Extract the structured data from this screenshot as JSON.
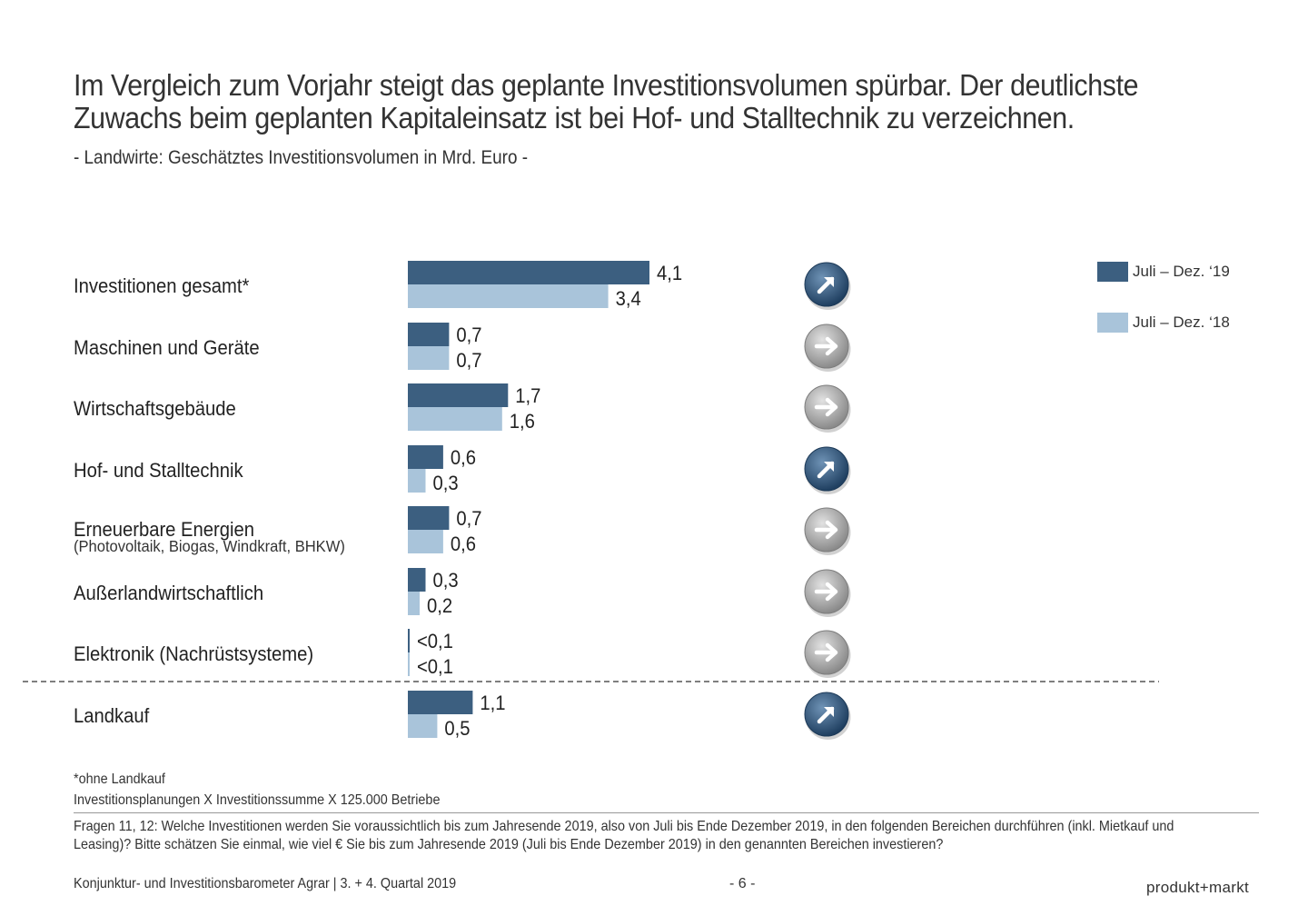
{
  "headline": {
    "line1": "Im Vergleich zum Vorjahr steigt das geplante Investitionsvolumen spürbar. Der deutlichste",
    "line2": "Zuwachs beim geplanten Kapitaleinsatz ist bei Hof- und Stalltechnik zu verzeichnen."
  },
  "subtitle": "- Landwirte: Geschätztes Investitionsvolumen in Mrd. Euro -",
  "colors": {
    "series_2019": "#3c5f80",
    "series_2018": "#a9c4da",
    "trend_up": "#2f5478",
    "trend_flat": "#9a9a9a"
  },
  "chart_data": {
    "type": "bar",
    "orientation": "horizontal",
    "categories": [
      "Investitionen gesamt*",
      "Maschinen und Geräte",
      "Wirtschaftsgebäude",
      "Hof- und Stalltechnik",
      "Erneuerbare Energien",
      "Außerlandwirtschaftlich",
      "Elektronik (Nachrüstsysteme)",
      "Landkauf"
    ],
    "category_sublabels": [
      "",
      "",
      "",
      "",
      "(Photovoltaik, Biogas, Windkraft, BHKW)",
      "",
      "",
      ""
    ],
    "series": [
      {
        "name": "Juli – Dez. ‘19",
        "values": [
          4.1,
          0.7,
          1.7,
          0.6,
          0.7,
          0.3,
          0.0,
          1.1
        ],
        "labels": [
          "4,1",
          "0,7",
          "1,7",
          "0,6",
          "0,7",
          "0,3",
          "<0,1",
          "1,1"
        ]
      },
      {
        "name": "Juli – Dez. ‘18",
        "values": [
          3.4,
          0.7,
          1.6,
          0.3,
          0.6,
          0.2,
          0.0,
          0.5
        ],
        "labels": [
          "3,4",
          "0,7",
          "1,6",
          "0,3",
          "0,6",
          "0,2",
          "<0,1",
          "0,5"
        ]
      }
    ],
    "trend_icons": [
      "arrow-up-right-icon",
      "arrow-right-icon",
      "arrow-right-icon",
      "arrow-up-right-icon",
      "arrow-right-icon",
      "arrow-right-icon",
      "arrow-right-icon",
      "arrow-up-right-icon"
    ],
    "xlim": [
      0,
      4.1
    ],
    "legend": "top-right",
    "grid": false
  },
  "footnotes": {
    "note1": "*ohne Landkauf",
    "note2": "Investitionsplanungen X Investitionssumme X 125.000 Betriebe"
  },
  "question": "Fragen 11, 12: Welche Investitionen werden Sie voraussichtlich bis zum Jahresende 2019, also von Juli bis Ende Dezember 2019, in den folgenden Bereichen durchführen (inkl. Mietkauf und Leasing)? Bitte schätzen Sie einmal, wie viel € Sie bis zum Jahresende 2019 (Juli bis Ende Dezember 2019) in den genannten Bereichen investieren?",
  "footer": {
    "left": "Konjunktur- und Investitionsbarometer Agrar | 3. + 4. Quartal 2019",
    "page": "- 6 -",
    "brand": "produkt+markt"
  }
}
